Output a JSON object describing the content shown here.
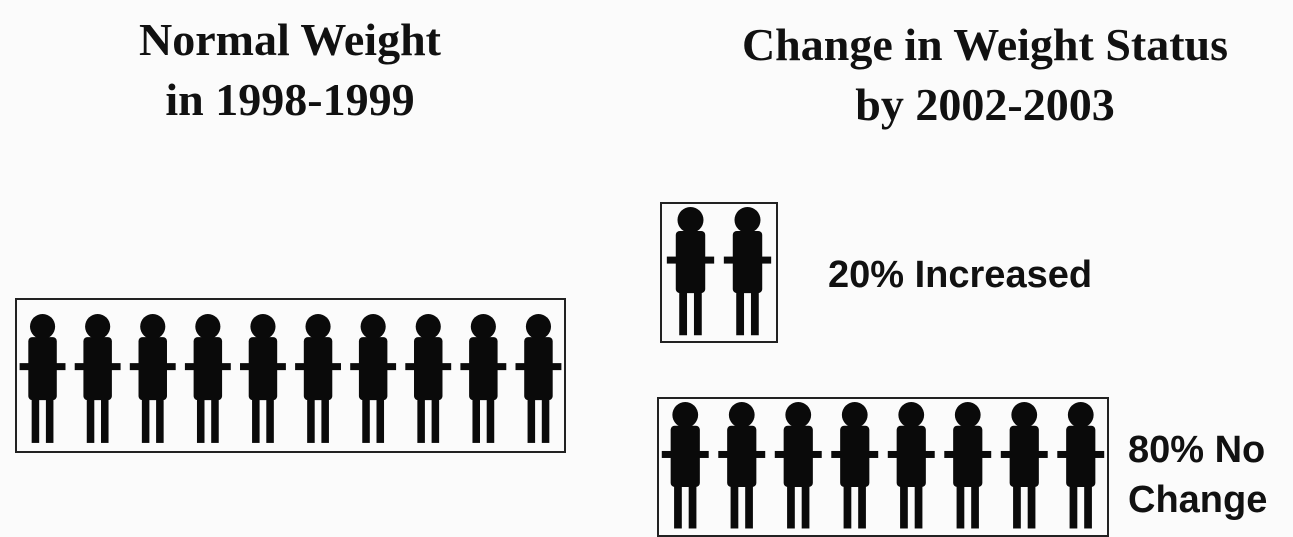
{
  "before": {
    "title": [
      "Normal Weight",
      "in 1998-1999"
    ],
    "figures": 10
  },
  "after": {
    "title": [
      "Change in Weight Status",
      "by 2002-2003"
    ],
    "groups": [
      {
        "label": [
          "20% Increased"
        ],
        "figures": 2
      },
      {
        "label": [
          "80% No",
          "Change"
        ],
        "figures": 8
      }
    ]
  }
}
